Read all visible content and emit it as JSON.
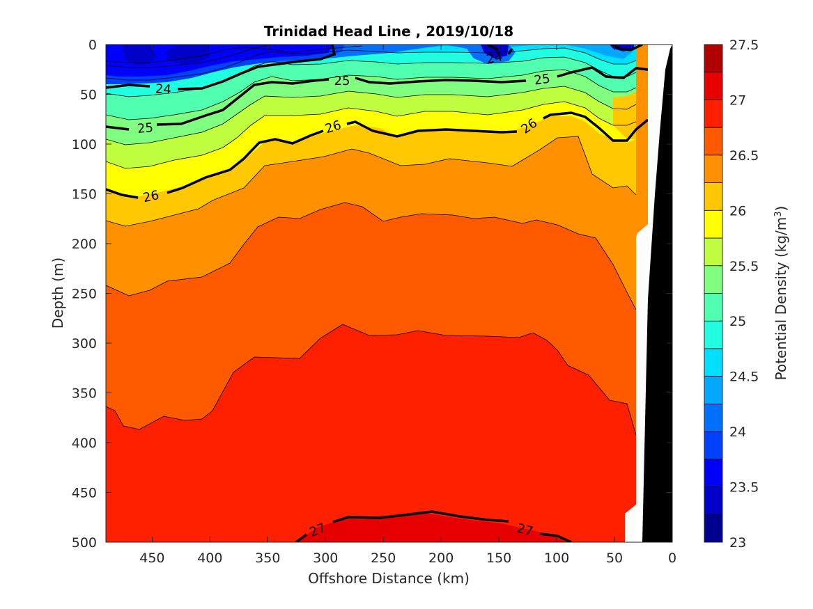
{
  "chart_data": {
    "type": "contourf",
    "title": "Trinidad Head Line , 2019/10/18",
    "xlabel": "Offshore Distance (km)",
    "ylabel": "Depth (m)",
    "colorbar_label": "Potential Density (kg/m³)",
    "colorbar_label_parts": {
      "prefix": "Potential Density (kg/m",
      "sup": "3",
      "suffix": ")"
    },
    "xlim": [
      490,
      0
    ],
    "x_reversed": true,
    "ylim": [
      0,
      500
    ],
    "y_reversed": true,
    "xticks": [
      450,
      400,
      350,
      300,
      250,
      200,
      150,
      100,
      50,
      0
    ],
    "yticks": [
      0,
      50,
      100,
      150,
      200,
      250,
      300,
      350,
      400,
      450,
      500
    ],
    "color_levels": [
      23,
      23.25,
      23.5,
      23.75,
      24,
      24.25,
      24.5,
      24.75,
      25,
      25.25,
      25.5,
      25.75,
      26,
      26.25,
      26.5,
      26.75,
      27,
      27.25,
      27.5
    ],
    "colorbar_ticks": [
      23,
      23.5,
      24,
      24.5,
      25,
      25.5,
      26,
      26.5,
      27,
      27.5
    ],
    "colormap": [
      "#00008F",
      "#0000C8",
      "#0000FF",
      "#0040FF",
      "#0070FF",
      "#00A8FF",
      "#00DFFF",
      "#20FFDF",
      "#50FFAF",
      "#80FF80",
      "#BFFF40",
      "#FFFF00",
      "#FFC800",
      "#FF9000",
      "#FF5A00",
      "#FF2000",
      "#E60000",
      "#B00000"
    ],
    "bold_contour_labels": [
      "24",
      "25",
      "26",
      "27"
    ],
    "contour_label_text": {
      "c24a": "24",
      "c24b": "24",
      "c25a": "25",
      "c25b": "25",
      "c25c": "25",
      "c26a": "26",
      "c26b": "26",
      "c26c": "26",
      "c27a": "27",
      "c27b": "27"
    },
    "bottom_mask_color": "#000000",
    "no_data_color": "#FFFFFF"
  }
}
